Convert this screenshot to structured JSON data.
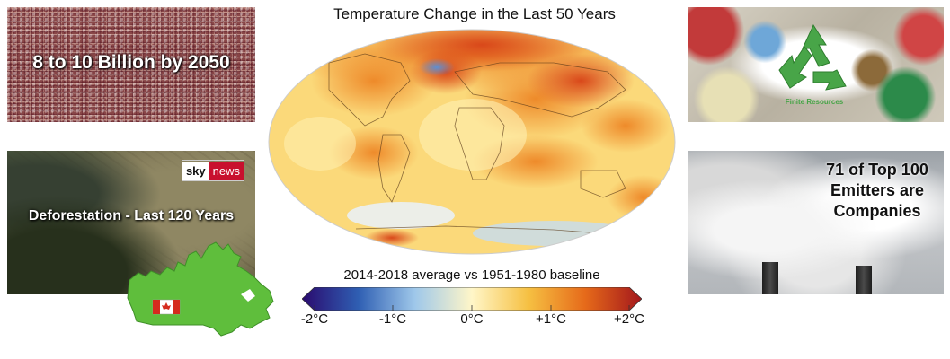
{
  "panels": {
    "population": {
      "label": "8 to 10 Billion by 2050"
    },
    "deforestation": {
      "label": "Deforestation - Last 120 Years",
      "logo_sky": "sky",
      "logo_news": "news"
    },
    "resources": {
      "label": "Finite Resources"
    },
    "emitters": {
      "line1": "71 of Top 100",
      "line2": "Emitters are",
      "line3": "Companies"
    }
  },
  "map": {
    "title": "Temperature Change in the Last 50 Years",
    "baseline": "2014-2018 average vs 1951-1980 baseline",
    "colorbar": {
      "ticks": [
        "-2°C",
        "-1°C",
        "0°C",
        "+1°C",
        "+2°C"
      ],
      "colors": [
        "#2a0a6e",
        "#2f5fb3",
        "#9fc8ea",
        "#fff6c8",
        "#f6c042",
        "#e66a1a",
        "#a3171c"
      ]
    }
  },
  "colors": {
    "canada_green": "#5fbe3c",
    "recycle_green": "#48a548",
    "sky_red": "#c8102e"
  }
}
